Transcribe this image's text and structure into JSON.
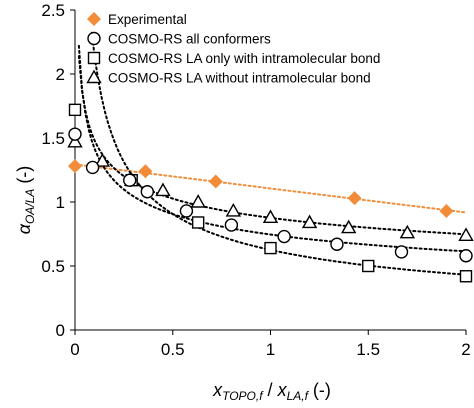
{
  "chart_data": {
    "type": "scatter",
    "title": "",
    "xlabel": {
      "symbol": "x",
      "sub1": "TOPO,f",
      "sep": " / ",
      "symbol2": "x",
      "sub2": "LA,f",
      "unit": " (-)"
    },
    "ylabel": {
      "symbol": "α",
      "sub": "OA/LA",
      "unit": " (-)"
    },
    "xlim": [
      0,
      2
    ],
    "ylim": [
      0,
      2.5
    ],
    "x_ticks": [
      0,
      0.5,
      1,
      1.5,
      2
    ],
    "x_tick_labels": [
      "0",
      "0.5",
      "1",
      "1.5",
      "2"
    ],
    "y_ticks": [
      0,
      0.5,
      1,
      1.5,
      2,
      2.5
    ],
    "y_tick_labels": [
      "0",
      "0.5",
      "1",
      "1.5",
      "2",
      "2.5"
    ],
    "grid": false,
    "legend_position": "top-left",
    "series": [
      {
        "name": "Experimental",
        "marker": "diamond",
        "color": "#F28C38",
        "line_color": "#F28C38",
        "x": [
          0,
          0.36,
          0.72,
          1.43,
          1.9
        ],
        "y": [
          1.28,
          1.24,
          1.16,
          1.03,
          0.93
        ],
        "trend": {
          "type": "linear",
          "x0": 0,
          "x1": 2
        }
      },
      {
        "name": "COSMO-RS all conformers",
        "marker": "circle",
        "color": "#000000",
        "line_color": "#000000",
        "x": [
          0,
          0.09,
          0.28,
          0.37,
          0.57,
          0.8,
          1.07,
          1.34,
          1.67,
          2.0
        ],
        "y": [
          1.53,
          1.27,
          1.17,
          1.08,
          0.93,
          0.82,
          0.73,
          0.67,
          0.61,
          0.58
        ],
        "trend": {
          "type": "power",
          "x0": 0.02,
          "x1": 2
        }
      },
      {
        "name": "COSMO-RS LA only with intramolecular bond",
        "marker": "square",
        "color": "#000000",
        "line_color": "#000000",
        "x": [
          0,
          0.29,
          0.63,
          1.0,
          1.5,
          2.0
        ],
        "y": [
          1.72,
          1.17,
          0.84,
          0.64,
          0.5,
          0.42
        ],
        "trend": {
          "type": "power",
          "x0": 0.02,
          "x1": 2
        }
      },
      {
        "name": "COSMO-RS LA without intramolecular bond",
        "marker": "triangle",
        "color": "#000000",
        "line_color": "#000000",
        "x": [
          0,
          0.14,
          0.29,
          0.45,
          0.63,
          0.81,
          1.0,
          1.2,
          1.4,
          1.7,
          2.0
        ],
        "y": [
          1.47,
          1.32,
          1.17,
          1.09,
          1.0,
          0.93,
          0.88,
          0.84,
          0.8,
          0.76,
          0.74
        ],
        "trend": {
          "type": "power",
          "x0": 0.02,
          "x1": 2
        }
      }
    ]
  }
}
